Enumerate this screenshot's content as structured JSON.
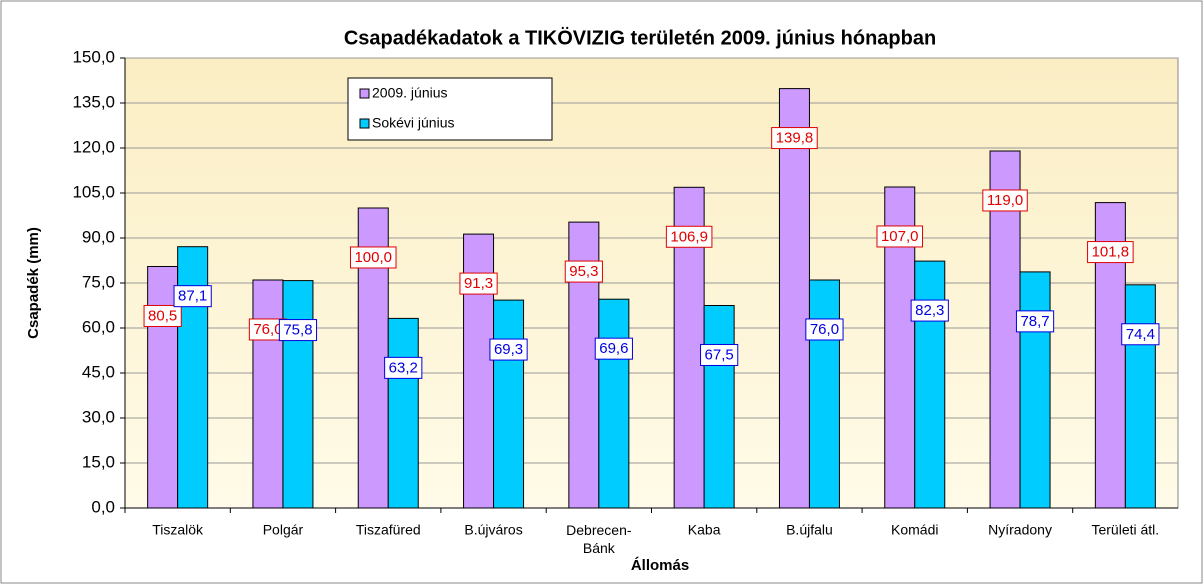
{
  "chart_data": {
    "type": "bar",
    "title": "Csapadékadatok a TIKÖVIZIG területén 2009. június hónapban",
    "x_label": "Állomás",
    "y_label": "Csapadék (mm)",
    "categories": [
      "Tiszalök",
      "Polgár",
      "Tiszafüred",
      "B.újváros",
      "Debrecen-Bánk",
      "Kaba",
      "B.újfalu",
      "Komádi",
      "Nyíradony",
      "Területi átl."
    ],
    "series": [
      {
        "name": "2009. június",
        "color": "#cc99ff",
        "label_color": "#e00000",
        "values": [
          80.5,
          76.0,
          100.0,
          91.3,
          95.3,
          106.9,
          139.8,
          107.0,
          119.0,
          101.8
        ],
        "value_labels": [
          "80,5",
          "76,0",
          "100,0",
          "91,3",
          "95,3",
          "106,9",
          "139,8",
          "107,0",
          "119,0",
          "101,8"
        ]
      },
      {
        "name": "Sokévi június",
        "color": "#00ccff",
        "label_color": "#0000e0",
        "values": [
          87.1,
          75.8,
          63.2,
          69.3,
          69.6,
          67.5,
          76.0,
          82.3,
          78.7,
          74.4
        ],
        "value_labels": [
          "87,1",
          "75,8",
          "63,2",
          "69,3",
          "69,6",
          "67,5",
          "76,0",
          "82,3",
          "78,7",
          "74,4"
        ]
      }
    ],
    "ylim": [
      0,
      150
    ],
    "yticks": [
      {
        "value": 0,
        "label": "0,0"
      },
      {
        "value": 15,
        "label": "15,0"
      },
      {
        "value": 30,
        "label": "30,0"
      },
      {
        "value": 45,
        "label": "45,0"
      },
      {
        "value": 60,
        "label": "60,0"
      },
      {
        "value": 75,
        "label": "75,0"
      },
      {
        "value": 90,
        "label": "90,0"
      },
      {
        "value": 105,
        "label": "105,0"
      },
      {
        "value": 120,
        "label": "120,0"
      },
      {
        "value": 135,
        "label": "135,0"
      },
      {
        "value": 150,
        "label": "150,0"
      }
    ],
    "grid": true
  }
}
